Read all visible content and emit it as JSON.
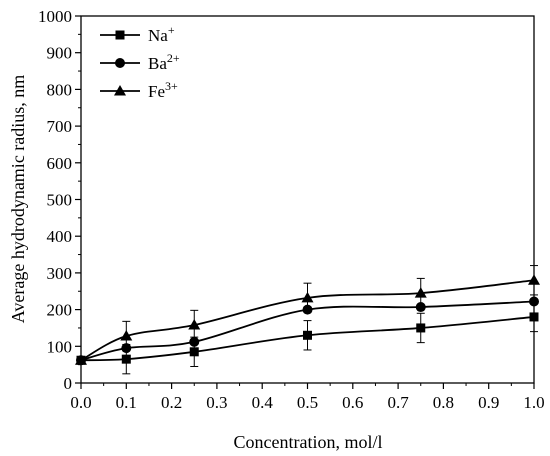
{
  "chart_data": {
    "type": "line",
    "xlabel": "Concentration, mol/l",
    "ylabel": "Average hydrodynamic radius, nm",
    "xlim": [
      0.0,
      1.0
    ],
    "ylim": [
      0,
      1000
    ],
    "xticks": [
      "0.0",
      "0.1",
      "0.2",
      "0.3",
      "0.4",
      "0.5",
      "0.6",
      "0.7",
      "0.8",
      "0.9",
      "1.0"
    ],
    "yticks": [
      "0",
      "100",
      "200",
      "300",
      "400",
      "500",
      "600",
      "700",
      "800",
      "900",
      "1000"
    ],
    "grid": false,
    "legend_position": "top-left",
    "series": [
      {
        "name": "Na",
        "ion_charge": "+",
        "marker": "square",
        "x": [
          0.0,
          0.1,
          0.25,
          0.5,
          0.75,
          1.0
        ],
        "y": [
          62,
          65,
          85,
          130,
          150,
          180
        ],
        "error": [
          0,
          40,
          40,
          40,
          40,
          40
        ]
      },
      {
        "name": "Ba",
        "ion_charge": "2+",
        "marker": "circle",
        "x": [
          0.0,
          0.1,
          0.25,
          0.5,
          0.75,
          1.0
        ],
        "y": [
          62,
          95,
          112,
          200,
          207,
          222
        ],
        "error": [
          0,
          0,
          0,
          0,
          0,
          0
        ]
      },
      {
        "name": "Fe",
        "ion_charge": "3+",
        "marker": "triangle",
        "x": [
          0.0,
          0.1,
          0.25,
          0.5,
          0.75,
          1.0
        ],
        "y": [
          62,
          128,
          158,
          232,
          245,
          280
        ],
        "error": [
          0,
          40,
          40,
          40,
          40,
          40
        ]
      }
    ]
  }
}
